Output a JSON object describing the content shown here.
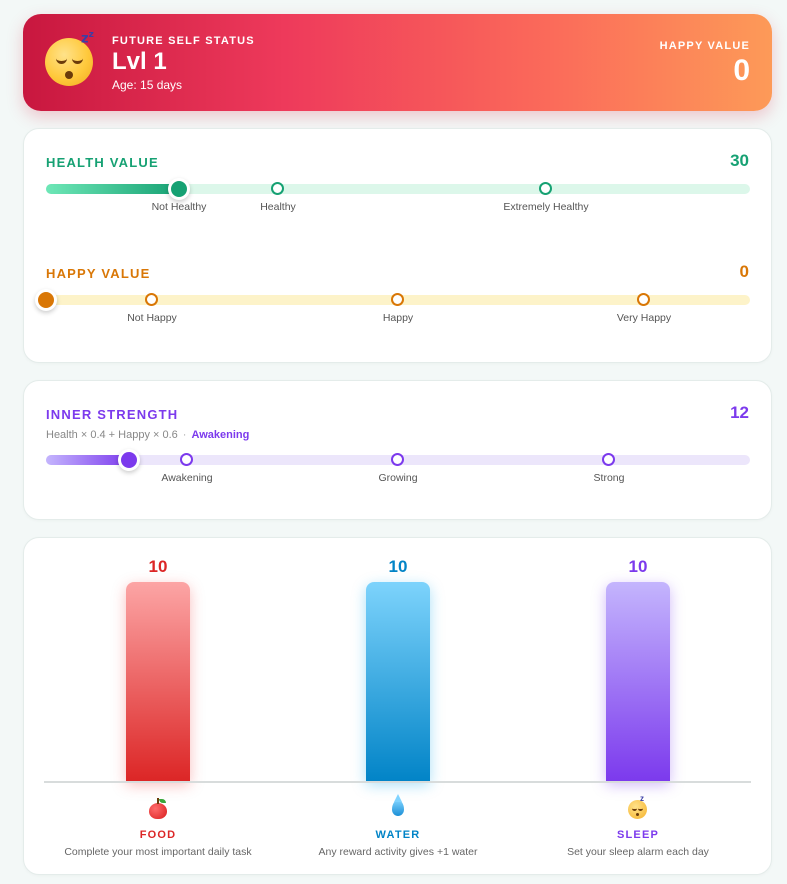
{
  "header": {
    "label": "FUTURE SELF STATUS",
    "level": "Lvl 1",
    "age": "Age: 15 days",
    "happy_value_label": "HAPPY VALUE",
    "happy_value": "0",
    "avatar_icon": "sleeping-face-icon"
  },
  "health": {
    "title": "HEALTH VALUE",
    "value": "30",
    "progress_percent": 19,
    "color": "#16a173",
    "markers": [
      {
        "label": "Not Healthy"
      },
      {
        "label": "Healthy"
      },
      {
        "label": "Extremely Healthy"
      }
    ]
  },
  "happy": {
    "title": "HAPPY VALUE",
    "value": "0",
    "progress_percent": 0,
    "color": "#d97706",
    "markers": [
      {
        "label": "Not Happy"
      },
      {
        "label": "Happy"
      },
      {
        "label": "Very Happy"
      }
    ]
  },
  "inner_strength": {
    "title": "INNER STRENGTH",
    "value": "12",
    "formula": "Health × 0.4 + Happy × 0.6",
    "stage": "Awakening",
    "progress_percent": 12,
    "color": "#7c3aed",
    "markers": [
      {
        "label": "Awakening"
      },
      {
        "label": "Growing"
      },
      {
        "label": "Strong"
      }
    ]
  },
  "resources": [
    {
      "key": "food",
      "name": "FOOD",
      "value": "10",
      "description": "Complete your most important daily task",
      "icon": "apple-icon",
      "color": "#dc2626"
    },
    {
      "key": "water",
      "name": "WATER",
      "value": "10",
      "description": "Any reward activity gives +1 water",
      "icon": "water-drop-icon",
      "color": "#0284c7"
    },
    {
      "key": "sleep",
      "name": "SLEEP",
      "value": "10",
      "description": "Set your sleep alarm each day",
      "icon": "sleeping-face-icon",
      "color": "#7c3aed"
    }
  ]
}
